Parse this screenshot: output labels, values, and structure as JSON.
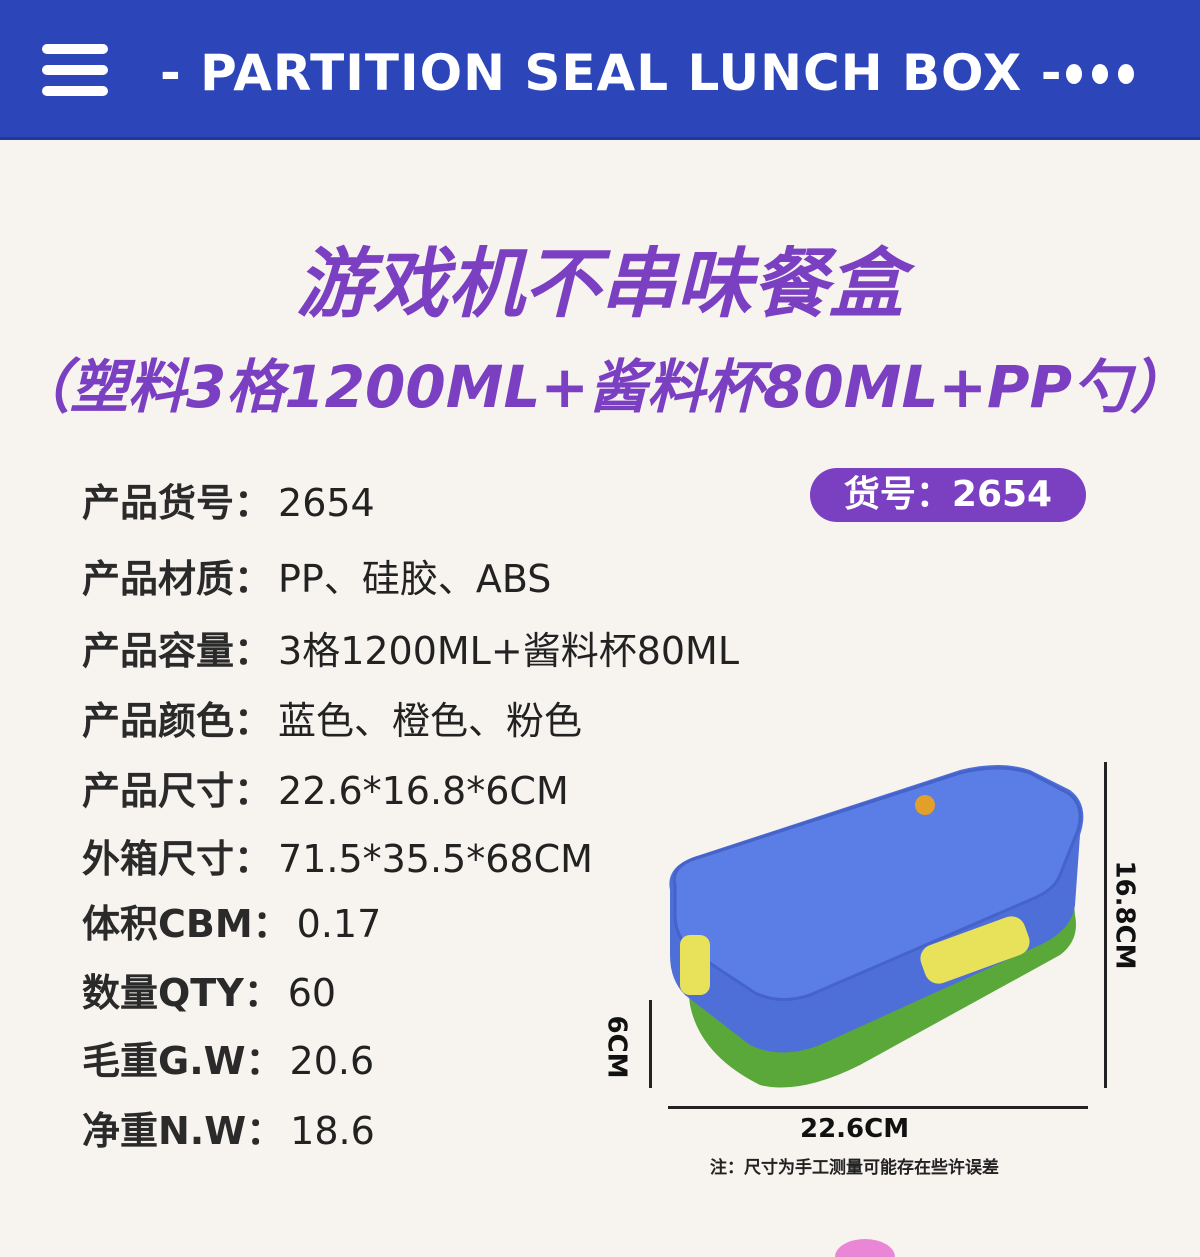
{
  "header": {
    "title": "- PARTITION SEAL LUNCH BOX  -",
    "menu_icon": "hamburger-menu-icon",
    "more_icon": "more-dots-icon",
    "color": "#2c45b8"
  },
  "title": {
    "line1": "游戏机不串味餐盒",
    "line2": "（塑料3格1200ML+酱料杯80ML+PP勺）",
    "color": "#7b3fc2"
  },
  "badge": "货号：2654",
  "specs": [
    {
      "label": "产品货号：",
      "value": "2654"
    },
    {
      "label": "产品材质：",
      "value": "PP、硅胶、ABS"
    },
    {
      "label": "产品容量：",
      "value": "3格1200ML+酱料杯80ML"
    },
    {
      "label": "产品颜色：",
      "value": "蓝色、橙色、粉色"
    },
    {
      "label": "产品尺寸：",
      "value": "22.6*16.8*6CM"
    },
    {
      "label": "外箱尺寸：",
      "value": "71.5*35.5*68CM"
    },
    {
      "label": "体积CBM：",
      "value": "0.17"
    },
    {
      "label": "数量QTY：",
      "value": "60"
    },
    {
      "label": "毛重G.W：",
      "value": "20.6"
    },
    {
      "label": "净重N.W：",
      "value": "18.6"
    }
  ],
  "dimensions": {
    "width": "22.6CM",
    "depth": "16.8CM",
    "height": "6CM"
  },
  "note": "注：尺寸为手工测量可能存在些许误差"
}
